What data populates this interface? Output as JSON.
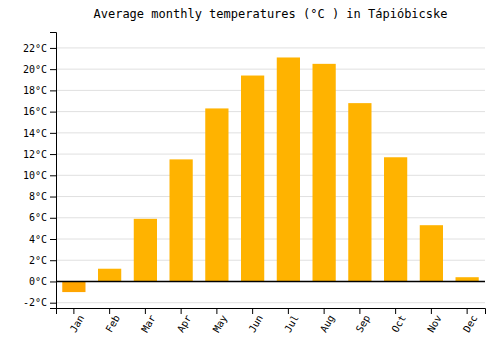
{
  "chart_data": {
    "type": "bar",
    "title": "Average monthly temperatures (°C ) in Tápióbicske",
    "categories": [
      "Jan",
      "Feb",
      "Mar",
      "Apr",
      "May",
      "Jun",
      "Jul",
      "Aug",
      "Sep",
      "Oct",
      "Nov",
      "Dec"
    ],
    "values": [
      -1.0,
      1.2,
      5.9,
      11.5,
      16.3,
      19.4,
      21.1,
      20.5,
      16.8,
      11.7,
      5.3,
      0.4
    ],
    "colors": [
      "#FFA500",
      "#FFB300",
      "#FFB300",
      "#FFB300",
      "#FFB300",
      "#FFB300",
      "#FFB300",
      "#FFB300",
      "#FFB300",
      "#FFB300",
      "#FFB300",
      "#FFB300"
    ],
    "ylim": [
      -2.5,
      23.5
    ],
    "yticks": [
      {
        "value": -2,
        "label": "-2°C"
      },
      {
        "value": 0,
        "label": "0°C"
      },
      {
        "value": 2,
        "label": "2°C"
      },
      {
        "value": 4,
        "label": "4°C"
      },
      {
        "value": 6,
        "label": "6°C"
      },
      {
        "value": 8,
        "label": "8°C"
      },
      {
        "value": 10,
        "label": "10°C"
      },
      {
        "value": 12,
        "label": "12°C"
      },
      {
        "value": 14,
        "label": "14°C"
      },
      {
        "value": 16,
        "label": "16°C"
      },
      {
        "value": 18,
        "label": "18°C"
      },
      {
        "value": 20,
        "label": "20°C"
      },
      {
        "value": 22,
        "label": "22°C"
      }
    ],
    "grid": true
  }
}
